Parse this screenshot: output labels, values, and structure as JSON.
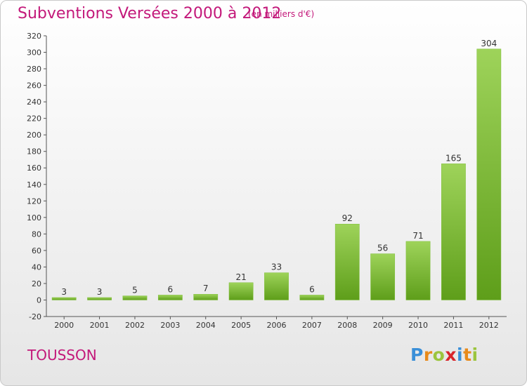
{
  "title": "Subventions Versées 2000 à 2012",
  "subtitle": "(en milliers d'€)",
  "commune": "TOUSSON",
  "logo": {
    "letters": [
      {
        "ch": "P",
        "color": "#3a8fd8"
      },
      {
        "ch": "r",
        "color": "#e88a1a"
      },
      {
        "ch": "o",
        "color": "#9bc53d"
      },
      {
        "ch": "x",
        "color": "#d8242a"
      },
      {
        "ch": "i",
        "color": "#3a8fd8"
      },
      {
        "ch": "t",
        "color": "#e88a1a"
      },
      {
        "ch": "i",
        "color": "#9bc53d"
      }
    ]
  },
  "colors": {
    "title": "#c3187a",
    "bar_light": "#9ed35a",
    "bar_dark": "#5e9e1a"
  },
  "chart_data": {
    "type": "bar",
    "categories": [
      "2000",
      "2001",
      "2002",
      "2003",
      "2004",
      "2005",
      "2006",
      "2007",
      "2008",
      "2009",
      "2010",
      "2011",
      "2012"
    ],
    "values": [
      3,
      3,
      5,
      6,
      7,
      21,
      33,
      6,
      92,
      56,
      71,
      165,
      304
    ],
    "ylim": [
      -20,
      320
    ],
    "yticks": [
      -20,
      0,
      20,
      40,
      60,
      80,
      100,
      120,
      140,
      160,
      180,
      200,
      220,
      240,
      260,
      280,
      300,
      320
    ],
    "grid": false,
    "data_labels": true
  }
}
